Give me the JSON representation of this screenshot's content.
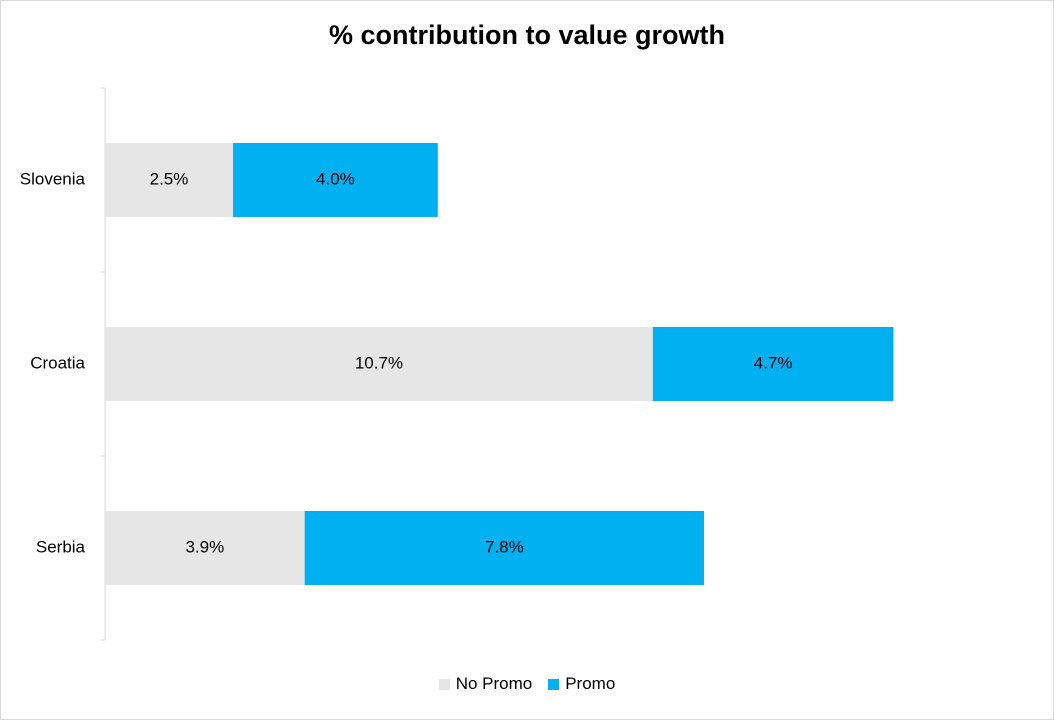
{
  "chart_data": {
    "type": "bar",
    "orientation": "horizontal",
    "stacked": true,
    "title": "% contribution to value growth",
    "categories": [
      "Slovenia",
      "Croatia",
      "Serbia"
    ],
    "series": [
      {
        "name": "No Promo",
        "color": "#e6e6e6",
        "values": [
          2.5,
          10.7,
          3.9
        ],
        "labels": [
          "2.5%",
          "10.7%",
          "3.9%"
        ]
      },
      {
        "name": "Promo",
        "color": "#00b0f0",
        "values": [
          4.0,
          4.7,
          7.8
        ],
        "labels": [
          "4.0%",
          "4.7%",
          "7.8%"
        ]
      }
    ],
    "xlim": [
      0,
      18
    ],
    "x_axis_visible": false,
    "grid": false,
    "legend_position": "bottom"
  }
}
